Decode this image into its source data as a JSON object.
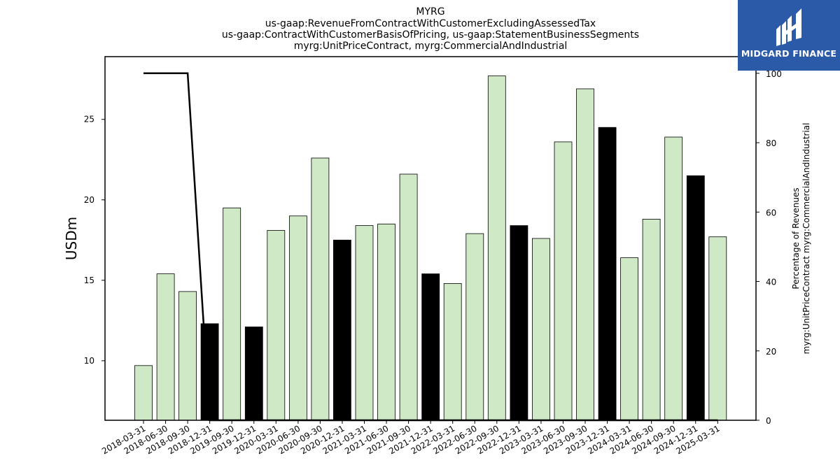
{
  "colors": {
    "bar_light": "#cfe9c7",
    "bar_dark": "#000000",
    "line": "#000000",
    "logo_bg": "#2b5aa8"
  },
  "logo": {
    "text": "MIDGARD FINANCE",
    "icon": "midgard-logo-icon"
  },
  "chart_data": {
    "type": "bar",
    "title_lines": [
      "MYRG",
      "us-gaap:RevenueFromContractWithCustomerExcludingAssessedTax",
      "us-gaap:ContractWithCustomerBasisOfPricing, us-gaap:StatementBusinessSegments",
      "myrg:UnitPriceContract, myrg:CommercialAndIndustrial"
    ],
    "ylabel": "USDm",
    "ylabel_right": [
      "Percentage of Revenues",
      "myrg:UnitPriceContract myrg:CommercialAndIndustrial"
    ],
    "categories": [
      "2018-03-31",
      "2018-06-30",
      "2018-09-30",
      "2018-12-31",
      "2019-09-30",
      "2019-12-31",
      "2020-03-31",
      "2020-06-30",
      "2020-09-30",
      "2020-12-31",
      "2021-03-31",
      "2021-06-30",
      "2021-09-30",
      "2021-12-31",
      "2022-03-31",
      "2022-06-30",
      "2022-09-30",
      "2022-12-31",
      "2023-03-31",
      "2023-06-30",
      "2023-09-30",
      "2023-12-31",
      "2024-03-31",
      "2024-06-30",
      "2024-09-30",
      "2024-12-31",
      "2025-03-31"
    ],
    "values": [
      9.7,
      15.4,
      14.3,
      12.3,
      19.5,
      12.1,
      18.1,
      19.0,
      22.6,
      17.5,
      18.4,
      18.5,
      21.6,
      15.4,
      14.8,
      17.9,
      27.7,
      18.4,
      17.6,
      23.6,
      26.9,
      24.5,
      16.4,
      18.8,
      23.9,
      21.5,
      17.7
    ],
    "bar_dark": [
      false,
      false,
      false,
      true,
      false,
      true,
      false,
      false,
      false,
      true,
      false,
      false,
      false,
      true,
      false,
      false,
      false,
      true,
      false,
      false,
      false,
      true,
      false,
      false,
      false,
      true,
      false
    ],
    "series": [
      {
        "values": [
          9.7,
          15.4,
          14.3,
          12.3,
          19.5,
          12.1,
          18.1,
          19.0,
          22.6,
          17.5,
          18.4,
          18.5,
          21.6,
          15.4,
          14.8,
          17.9,
          27.7,
          18.4,
          17.6,
          23.6,
          26.9,
          24.5,
          16.4,
          18.8,
          23.9,
          21.5,
          17.7
        ],
        "axis": "left",
        "kind": "bar"
      },
      {
        "values": [
          100,
          100,
          100,
          0,
          0,
          0,
          0,
          0,
          0,
          0,
          0,
          0,
          0,
          0,
          0,
          0,
          0,
          0,
          0,
          0,
          0,
          0,
          0,
          0,
          0,
          0,
          0
        ],
        "axis": "right",
        "kind": "line"
      }
    ],
    "ylim": [
      6.3,
      28.9
    ],
    "yticks": [
      10,
      15,
      20,
      25
    ],
    "ylim_right": [
      0,
      104.8
    ],
    "yticks_right": [
      0,
      20,
      40,
      60,
      80,
      100
    ],
    "grid": false,
    "legend": "none"
  }
}
